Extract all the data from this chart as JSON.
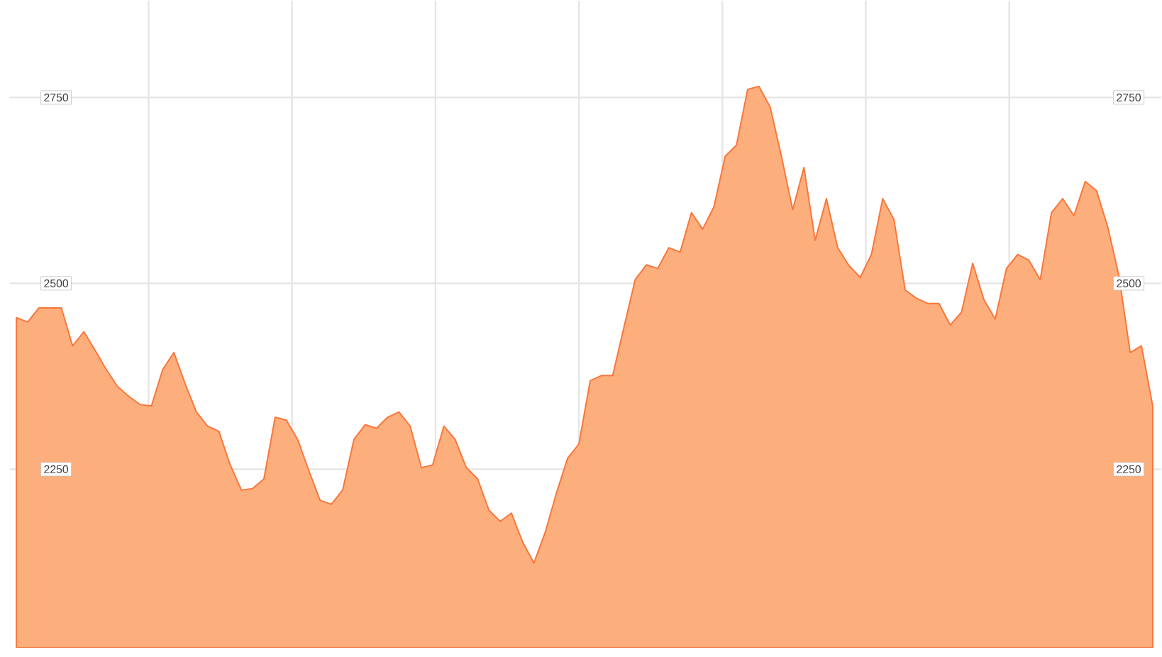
{
  "chart_data": {
    "type": "area",
    "categories": [
      null,
      null,
      null,
      null,
      null,
      null,
      null,
      null,
      null,
      null,
      null,
      null,
      null,
      null,
      null,
      null,
      null,
      null,
      null,
      null,
      null,
      null,
      null,
      null,
      null,
      null,
      null,
      null,
      null,
      null,
      null,
      null,
      null,
      null,
      null,
      null,
      null,
      null,
      null,
      null,
      null,
      null,
      null,
      null,
      null,
      null,
      null,
      null,
      null,
      null,
      null,
      null,
      null,
      null,
      null,
      null,
      null,
      null,
      null,
      null,
      null,
      null,
      null,
      null,
      null,
      null,
      null,
      null,
      null,
      null,
      null,
      null,
      null,
      null,
      null,
      null,
      null,
      null,
      null,
      null,
      null,
      null,
      null,
      null,
      null,
      null,
      null,
      null,
      null,
      null,
      null,
      null,
      null,
      null,
      null,
      null,
      null,
      null,
      null,
      null,
      null,
      null
    ],
    "series": [
      {
        "color": "#fcae7c",
        "values": [
          2454,
          2448,
          2467,
          2467,
          2467,
          2416,
          2435,
          2410,
          2384,
          2361,
          2348,
          2337,
          2335,
          2384,
          2407,
          2365,
          2327,
          2308,
          2301,
          2256,
          2222,
          2224,
          2237,
          2320,
          2316,
          2290,
          2248,
          2208,
          2203,
          2222,
          2290,
          2310,
          2305,
          2320,
          2327,
          2308,
          2252,
          2256,
          2308,
          2290,
          2252,
          2237,
          2195,
          2180,
          2191,
          2152,
          2124,
          2165,
          2218,
          2265,
          2284,
          2369,
          2376,
          2376,
          2441,
          2505,
          2525,
          2520,
          2548,
          2542,
          2595,
          2573,
          2603,
          2671,
          2686,
          2761,
          2765,
          2737,
          2671,
          2599,
          2656,
          2558,
          2614,
          2548,
          2524,
          2508,
          2539,
          2614,
          2586,
          2491,
          2480,
          2473,
          2473,
          2444,
          2461,
          2527,
          2478,
          2452,
          2520,
          2539,
          2531,
          2505,
          2595,
          2614,
          2591,
          2637,
          2625,
          2576,
          2510,
          2407,
          2416,
          2335
        ]
      }
    ],
    "ylim": [
      2010,
      2880
    ],
    "yticks": [
      2250,
      2500,
      2750
    ],
    "y2lim": [
      2010,
      2880
    ],
    "y2ticks": [
      2250,
      2500,
      2750
    ],
    "grid": true
  }
}
